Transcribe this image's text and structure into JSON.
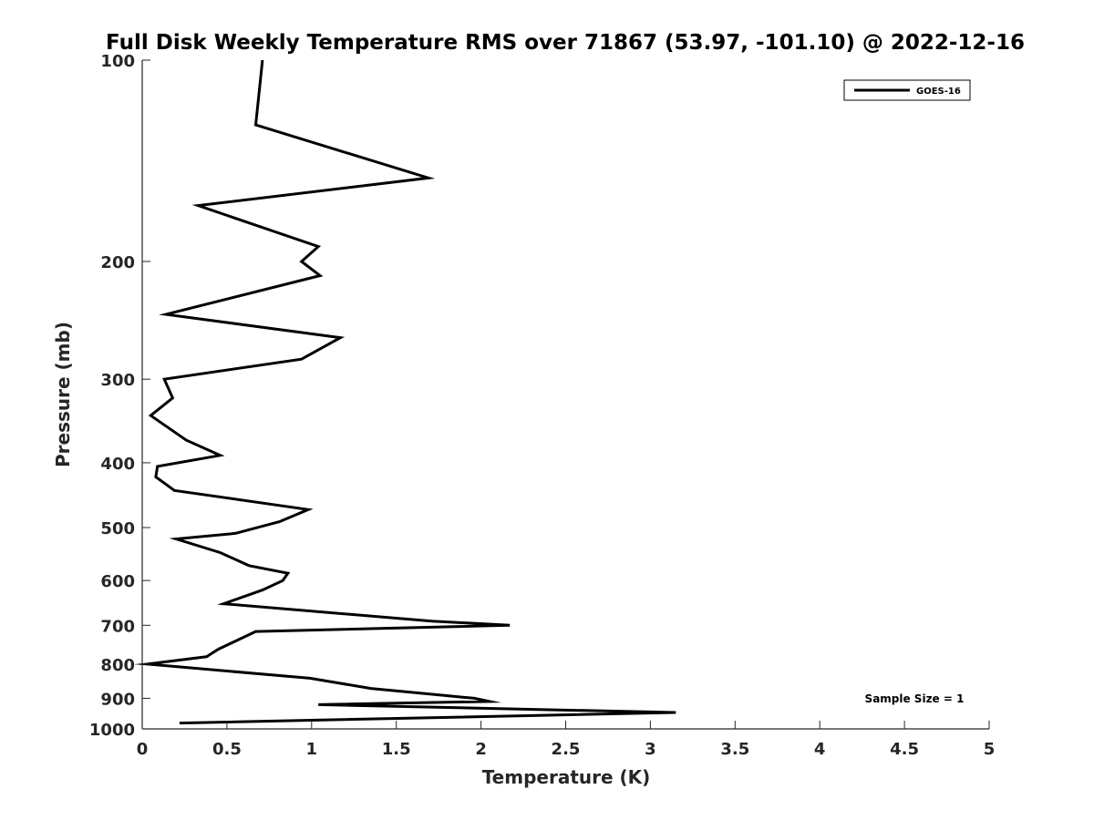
{
  "chart_data": {
    "type": "line",
    "title": "Full Disk Weekly Temperature RMS over 71867 (53.97, -101.10) @ 2022-12-16",
    "xlabel": "Temperature (K)",
    "ylabel": "Pressure (mb)",
    "xlim": [
      0,
      5
    ],
    "ylim": [
      100,
      1000
    ],
    "yscale": "log",
    "yreversed": true,
    "xticks": [
      0,
      0.5,
      1,
      1.5,
      2,
      2.5,
      3,
      3.5,
      4,
      4.5,
      5
    ],
    "xtick_labels": [
      "0",
      "0.5",
      "1",
      "1.5",
      "2",
      "2.5",
      "3",
      "3.5",
      "4",
      "4.5",
      "5"
    ],
    "yticks": [
      100,
      200,
      300,
      400,
      500,
      600,
      700,
      800,
      900,
      1000
    ],
    "ytick_labels": [
      "100",
      "200",
      "300",
      "400",
      "500",
      "600",
      "700",
      "800",
      "900",
      "1000"
    ],
    "grid": false,
    "legend_position": "top-right",
    "annotation": "Sample Size = 1",
    "series": [
      {
        "name": "GOES-16",
        "color": "#000000",
        "x": [
          0.71,
          0.67,
          1.69,
          0.33,
          1.04,
          0.94,
          1.05,
          0.14,
          1.17,
          0.94,
          0.13,
          0.18,
          0.05,
          0.26,
          0.46,
          0.09,
          0.08,
          0.19,
          0.98,
          0.81,
          0.55,
          0.2,
          0.46,
          0.63,
          0.86,
          0.83,
          0.71,
          0.48,
          1.71,
          2.17,
          0.67,
          0.45,
          0.38,
          0.03,
          0.99,
          1.35,
          1.96,
          2.05,
          1.04,
          3.15,
          0.22
        ],
        "y": [
          100,
          125,
          150,
          165,
          190,
          200,
          210,
          240,
          260,
          280,
          300,
          320,
          340,
          370,
          390,
          405,
          420,
          440,
          470,
          490,
          510,
          520,
          545,
          570,
          585,
          600,
          620,
          650,
          690,
          700,
          715,
          760,
          780,
          800,
          840,
          870,
          900,
          910,
          920,
          945,
          980
        ]
      }
    ]
  }
}
